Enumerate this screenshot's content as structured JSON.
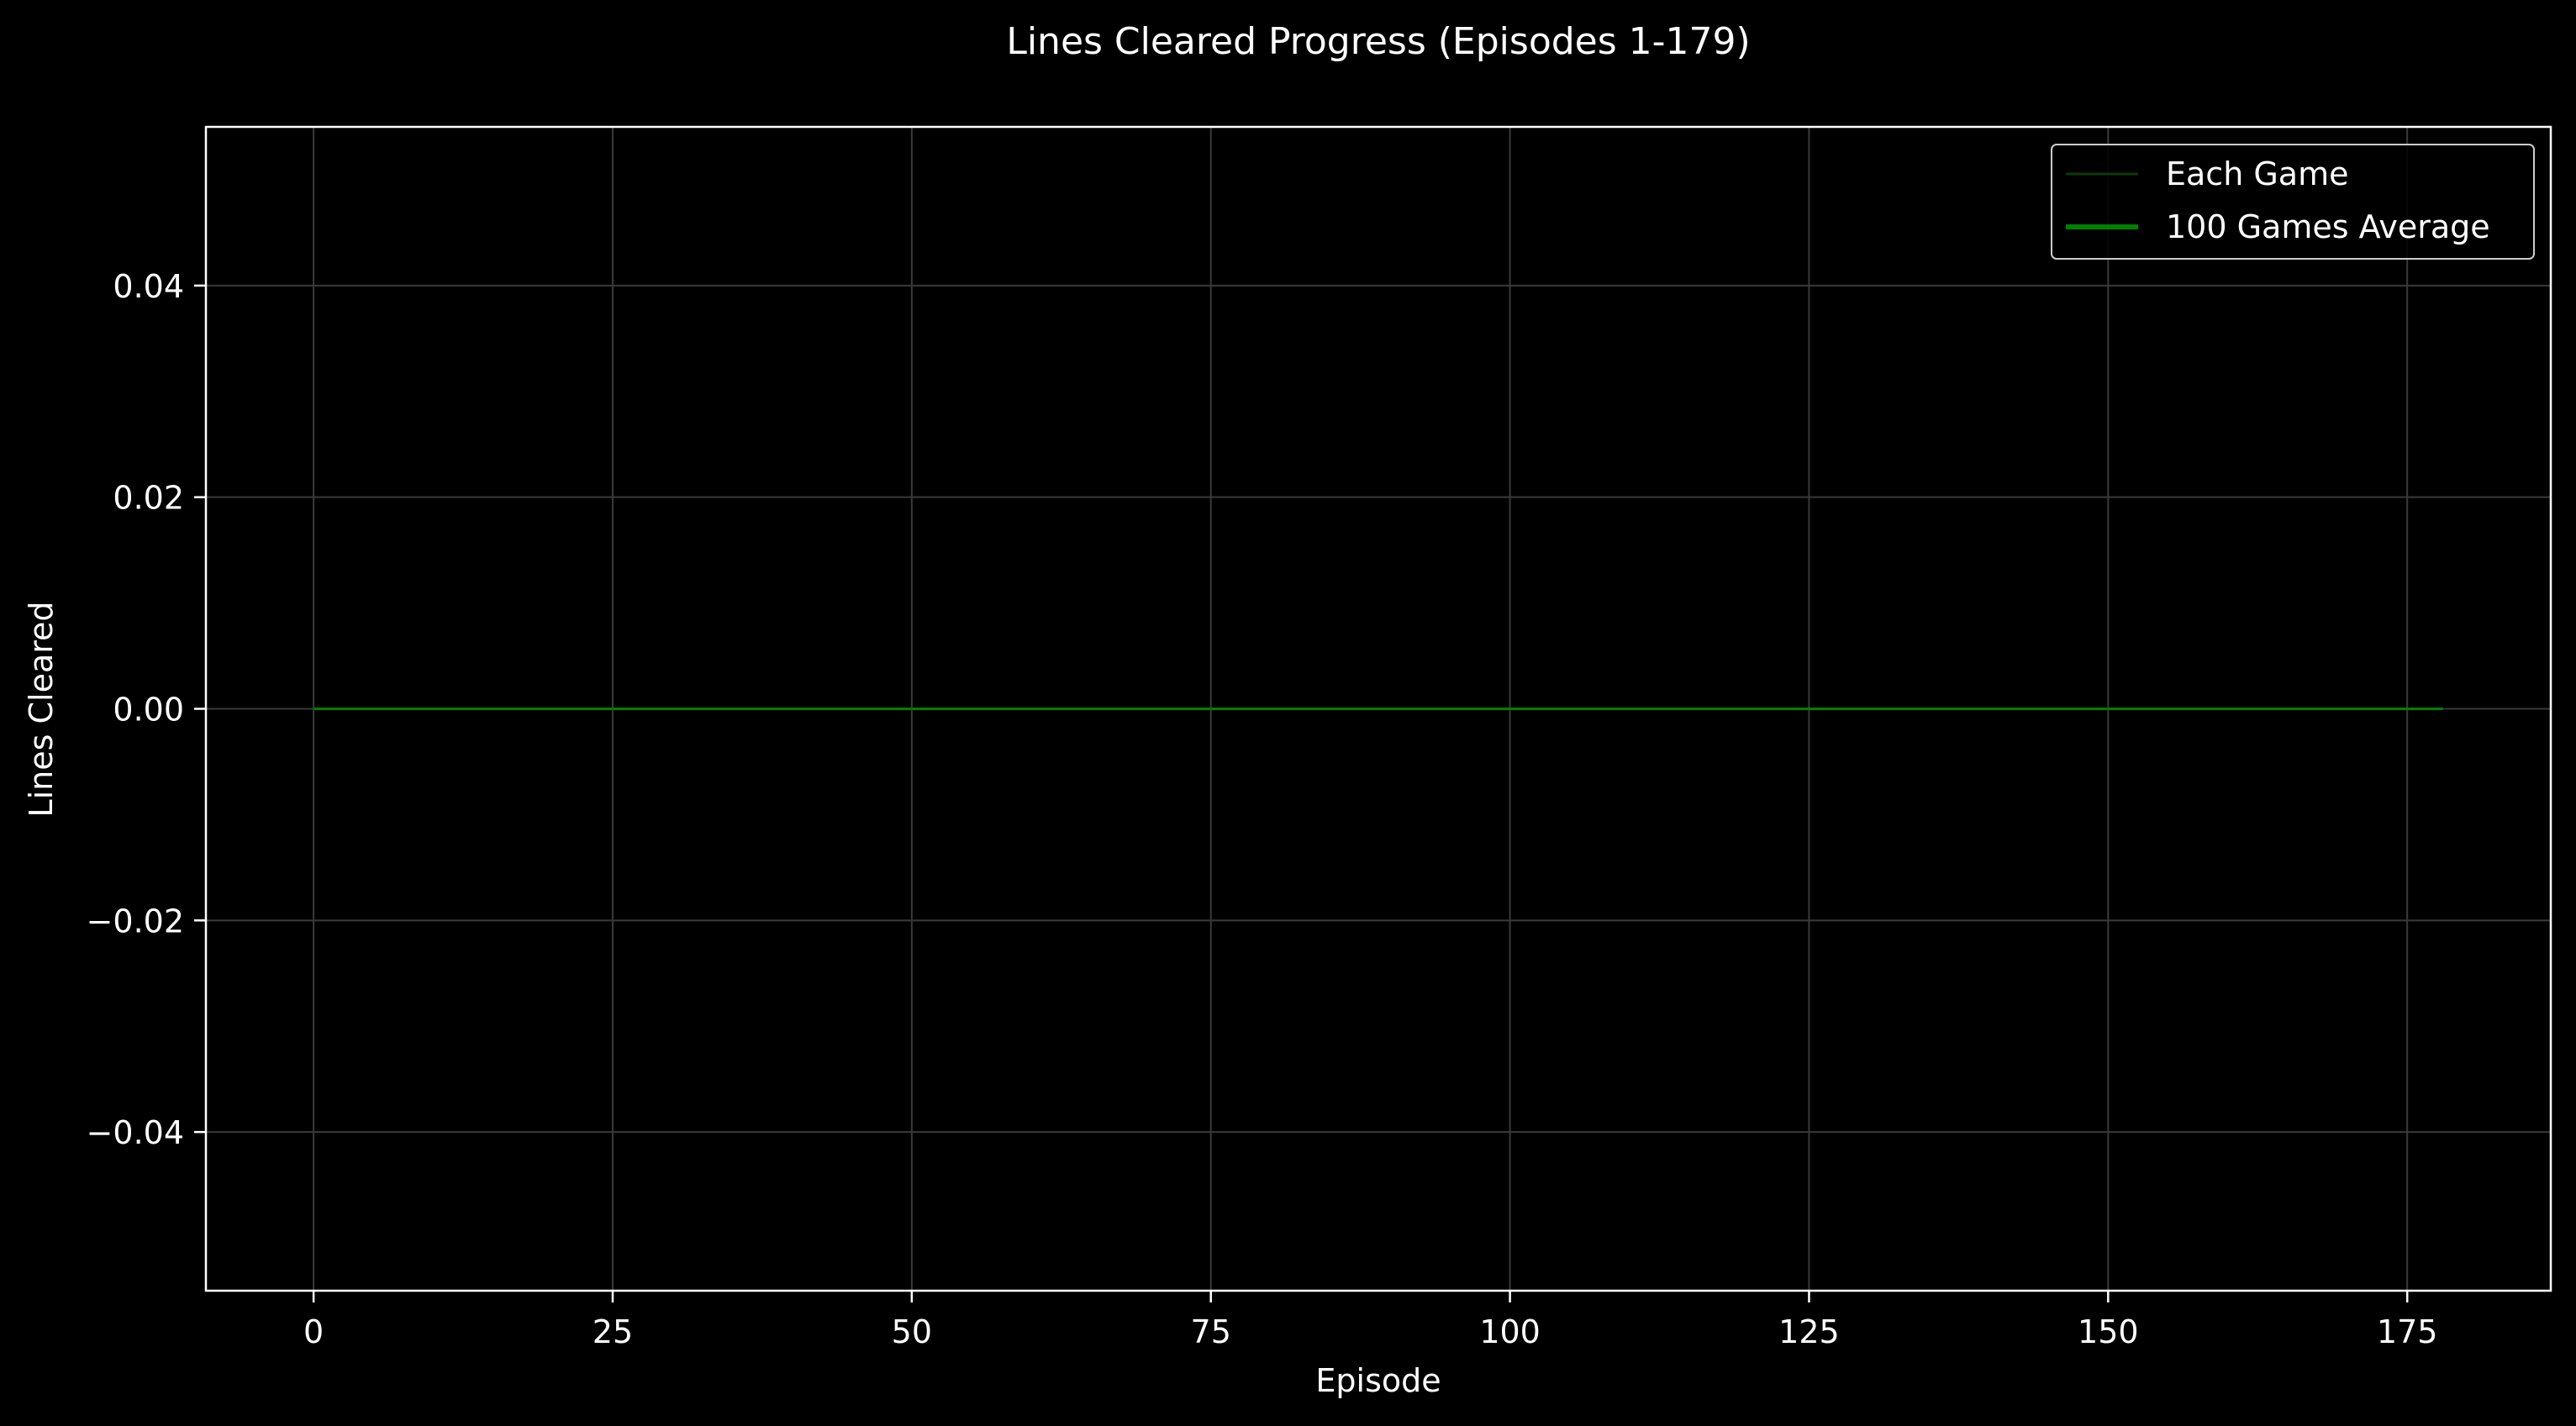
{
  "chart_data": {
    "type": "line",
    "title": "Lines Cleared Progress (Episodes 1-179)",
    "xlabel": "Episode",
    "ylabel": "Lines Cleared",
    "xlim": [
      -9,
      187
    ],
    "ylim": [
      -0.055,
      0.055
    ],
    "xticks": [
      0,
      25,
      50,
      75,
      100,
      125,
      150,
      175
    ],
    "xtick_labels": [
      "0",
      "25",
      "50",
      "75",
      "100",
      "125",
      "150",
      "175"
    ],
    "yticks": [
      0.04,
      0.02,
      0.0,
      -0.02,
      -0.04
    ],
    "ytick_labels": [
      "0.04",
      "0.02",
      "0.00",
      "−0.02",
      "−0.04"
    ],
    "grid": true,
    "legend_position": "top-right",
    "series": [
      {
        "name": "Each Game",
        "color": "#0b3a0b",
        "x_range": [
          0,
          178
        ],
        "value": 0
      },
      {
        "name": "100 Games Average",
        "color": "#008000",
        "x_range": [
          0,
          178
        ],
        "value": 0
      }
    ]
  },
  "colors": {
    "background": "#000000",
    "axes": "#ffffff",
    "grid": "#3a3a3a",
    "text": "#ffffff"
  }
}
